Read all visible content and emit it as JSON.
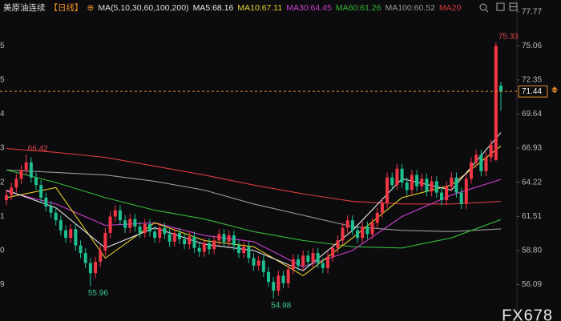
{
  "chart_data": {
    "type": "candlestick",
    "title": "美原油连续",
    "period": "【日线】",
    "ma_label": "MA(5,10,30,60,100,200)",
    "watermark": "FX678",
    "up_color": "#f23645",
    "down_color": "#1fbf8f",
    "price_line_color": "#f0902a",
    "ylim": [
      53.2,
      78.7
    ],
    "yticks": [
      77.77,
      75.06,
      72.35,
      69.64,
      66.93,
      64.22,
      61.51,
      {
        "value": 58.8,
        "label": "58.80"
      },
      56.09
    ],
    "left_axis_fragments": [
      "5",
      "5",
      "4",
      "3",
      "2",
      "1",
      "0",
      "9"
    ],
    "open": [
      62.8,
      63.2,
      63.8,
      64.5,
      65.2,
      65.8,
      64.6,
      64.0,
      63.0,
      62.3,
      61.8,
      61.2,
      60.4,
      59.8,
      60.5,
      59.2,
      58.6,
      57.8,
      57.0,
      57.9,
      58.8,
      60.2,
      61.5,
      62.0,
      61.2,
      60.6,
      61.3,
      60.7,
      60.2,
      60.9,
      60.3,
      59.8,
      60.6,
      60.1,
      59.5,
      60.2,
      59.7,
      59.3,
      59.9,
      59.0,
      58.7,
      59.4,
      58.9,
      59.6,
      60.1,
      59.5,
      60.0,
      59.2,
      58.6,
      59.1,
      58.2,
      57.6,
      58.0,
      57.1,
      56.3,
      55.6,
      56.8,
      56.2,
      57.3,
      58.1,
      57.6,
      58.4,
      57.9,
      58.6,
      57.8,
      57.4,
      58.3,
      59.0,
      59.6,
      60.6,
      61.2,
      60.4,
      59.8,
      60.7,
      60.1,
      61.0,
      61.8,
      62.6,
      64.6,
      64.0,
      65.3,
      64.2,
      63.6,
      64.8,
      63.9,
      64.5,
      63.5,
      64.3,
      63.4,
      62.8,
      63.9,
      64.6,
      63.4,
      62.5,
      64.5,
      65.8,
      66.4,
      65.1,
      66.2,
      66.0,
      71.9
    ],
    "high": [
      63.6,
      64.2,
      64.9,
      65.6,
      66.42,
      66.2,
      65.0,
      64.4,
      63.4,
      62.7,
      62.2,
      61.6,
      60.8,
      60.9,
      60.9,
      59.6,
      59.0,
      58.2,
      58.3,
      59.2,
      60.6,
      61.9,
      62.4,
      62.4,
      61.6,
      61.7,
      61.7,
      61.1,
      61.3,
      61.3,
      60.7,
      61.0,
      61.0,
      60.5,
      60.6,
      60.6,
      60.1,
      60.3,
      60.3,
      59.4,
      59.8,
      59.8,
      60.0,
      60.5,
      60.5,
      60.4,
      60.4,
      59.6,
      59.5,
      59.5,
      58.6,
      58.4,
      58.4,
      57.5,
      56.7,
      57.2,
      57.2,
      57.7,
      58.5,
      58.5,
      58.8,
      58.8,
      59.0,
      59.0,
      58.2,
      58.7,
      59.4,
      60.0,
      61.0,
      61.6,
      61.6,
      60.8,
      61.1,
      61.1,
      61.4,
      62.2,
      63.0,
      65.0,
      65.0,
      65.7,
      65.7,
      64.6,
      65.2,
      65.2,
      64.9,
      64.9,
      64.7,
      64.7,
      63.8,
      64.3,
      65.0,
      65.0,
      63.8,
      64.9,
      66.2,
      66.8,
      66.8,
      66.6,
      67.6,
      75.33,
      72.2
    ],
    "low": [
      62.4,
      62.8,
      63.4,
      64.1,
      64.8,
      64.2,
      63.6,
      62.6,
      61.9,
      61.4,
      60.8,
      60.0,
      59.4,
      59.4,
      58.8,
      58.2,
      57.4,
      55.96,
      56.6,
      57.5,
      58.4,
      59.8,
      61.1,
      60.8,
      60.2,
      60.2,
      60.3,
      59.8,
      59.8,
      59.9,
      59.4,
      59.4,
      59.7,
      59.1,
      59.1,
      59.3,
      58.9,
      58.9,
      58.6,
      58.3,
      58.3,
      58.5,
      58.5,
      59.2,
      59.1,
      59.1,
      58.8,
      58.2,
      58.2,
      57.8,
      57.2,
      57.2,
      56.7,
      55.9,
      54.98,
      55.2,
      55.8,
      55.8,
      56.9,
      57.2,
      57.2,
      57.5,
      57.5,
      57.4,
      57.0,
      57.0,
      57.9,
      58.6,
      59.2,
      60.2,
      60.0,
      59.4,
      59.4,
      59.7,
      59.7,
      60.6,
      61.4,
      62.2,
      63.6,
      63.6,
      63.8,
      63.2,
      63.2,
      63.5,
      63.5,
      63.1,
      63.1,
      63.0,
      62.4,
      62.4,
      63.5,
      63.0,
      62.1,
      62.1,
      64.1,
      65.4,
      64.7,
      64.7,
      65.8,
      65.9,
      69.9
    ],
    "close": [
      63.2,
      63.8,
      64.5,
      65.2,
      65.8,
      64.6,
      64.0,
      63.0,
      62.3,
      61.8,
      61.2,
      60.4,
      59.8,
      60.5,
      59.2,
      58.6,
      57.8,
      57.0,
      57.9,
      58.8,
      60.2,
      61.5,
      62.0,
      61.2,
      60.6,
      61.3,
      60.7,
      60.2,
      60.9,
      60.3,
      59.8,
      60.6,
      60.1,
      59.5,
      60.2,
      59.7,
      59.3,
      59.9,
      59.0,
      58.7,
      59.4,
      58.9,
      59.6,
      60.1,
      59.5,
      60.0,
      59.2,
      58.6,
      59.1,
      58.2,
      57.6,
      58.0,
      57.1,
      56.3,
      55.6,
      56.8,
      56.2,
      57.3,
      58.1,
      57.6,
      58.4,
      57.9,
      58.6,
      57.8,
      57.4,
      58.3,
      59.0,
      59.6,
      60.6,
      61.2,
      60.4,
      59.8,
      60.7,
      60.1,
      61.0,
      61.8,
      62.6,
      64.6,
      64.0,
      65.3,
      64.2,
      63.6,
      64.8,
      63.9,
      64.5,
      63.5,
      64.3,
      63.4,
      62.8,
      63.9,
      64.6,
      63.4,
      62.5,
      64.5,
      65.8,
      66.4,
      65.1,
      66.2,
      67.2,
      75.06,
      71.44
    ],
    "ma_lines": [
      {
        "name": "MA5:68.16",
        "color": "#e8e8e8",
        "x": [
          0,
          10,
          20,
          30,
          40,
          50,
          60,
          70,
          80,
          90,
          100
        ],
        "values": [
          63.6,
          62.2,
          59.0,
          60.6,
          59.3,
          58.8,
          57.2,
          60.4,
          64.5,
          63.6,
          68.16
        ]
      },
      {
        "name": "MA10:67.11",
        "color": "#e6cf2e",
        "x": [
          0,
          10,
          20,
          30,
          40,
          50,
          60,
          70,
          80,
          90,
          100
        ],
        "values": [
          63.0,
          63.8,
          58.2,
          61.0,
          59.6,
          59.1,
          56.8,
          59.8,
          63.0,
          64.0,
          67.11
        ]
      },
      {
        "name": "MA30:64.45",
        "color": "#cc3fcc",
        "x": [
          0,
          10,
          20,
          30,
          40,
          50,
          60,
          70,
          80,
          90,
          100
        ],
        "values": [
          63.5,
          62.5,
          60.8,
          61.0,
          60.0,
          59.5,
          57.5,
          58.8,
          61.5,
          63.2,
          64.45
        ]
      },
      {
        "name": "MA60:61.26",
        "color": "#36b836",
        "x": [
          0,
          10,
          20,
          30,
          40,
          50,
          60,
          70,
          80,
          90,
          100
        ],
        "values": [
          65.2,
          64.2,
          63.0,
          62.0,
          61.3,
          60.3,
          59.6,
          59.1,
          59.0,
          59.8,
          61.26
        ]
      },
      {
        "name": "MA100:60.52",
        "color": "#9a9a9a",
        "x": [
          0,
          10,
          20,
          30,
          40,
          50,
          60,
          70,
          80,
          90,
          100
        ],
        "values": [
          65.2,
          65.0,
          64.8,
          64.3,
          63.6,
          62.5,
          61.6,
          60.7,
          60.4,
          60.3,
          60.52
        ]
      },
      {
        "name": "MA20",
        "color": "#d83a3a",
        "x": [
          0,
          10,
          20,
          30,
          40,
          50,
          60,
          70,
          80,
          90,
          100
        ],
        "values": [
          66.9,
          66.6,
          66.2,
          65.5,
          64.8,
          64.0,
          63.3,
          62.7,
          62.5,
          62.5,
          62.7
        ]
      }
    ]
  }
}
